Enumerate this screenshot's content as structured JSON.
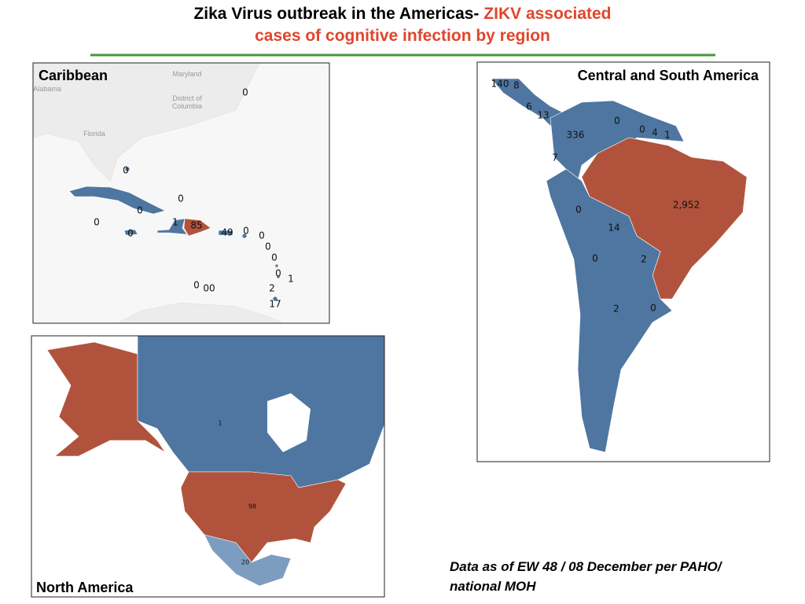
{
  "header": {
    "title_part1": "Zika Virus outbreak in the Americas-",
    "title_highlight": "ZIKV associated",
    "title_line2": "cases of cognitive infection by region"
  },
  "panels": [
    {
      "title": "Caribbean",
      "places": [
        "Maryland",
        "Alabama",
        "District of",
        "Columbia",
        "Florida"
      ],
      "case_labels": [
        "0",
        "0",
        "0",
        "0",
        "0",
        "1",
        "85",
        "49",
        "0",
        "0",
        "0",
        "0",
        "0",
        "0",
        "1",
        "0",
        "00",
        "2",
        "17"
      ]
    },
    {
      "title": "Central and South America",
      "case_labels": [
        "140",
        "8",
        "6",
        "13",
        "0",
        "0",
        "4",
        "1",
        "336",
        "7",
        "2,952",
        "0",
        "14",
        "0",
        "2",
        "2",
        "0"
      ]
    },
    {
      "title": "North America",
      "case_labels": [
        "1",
        "98",
        "20"
      ]
    }
  ],
  "footnote": [
    "Data as of EW 48 / 08 December per PAHO/",
    "national MOH"
  ]
}
